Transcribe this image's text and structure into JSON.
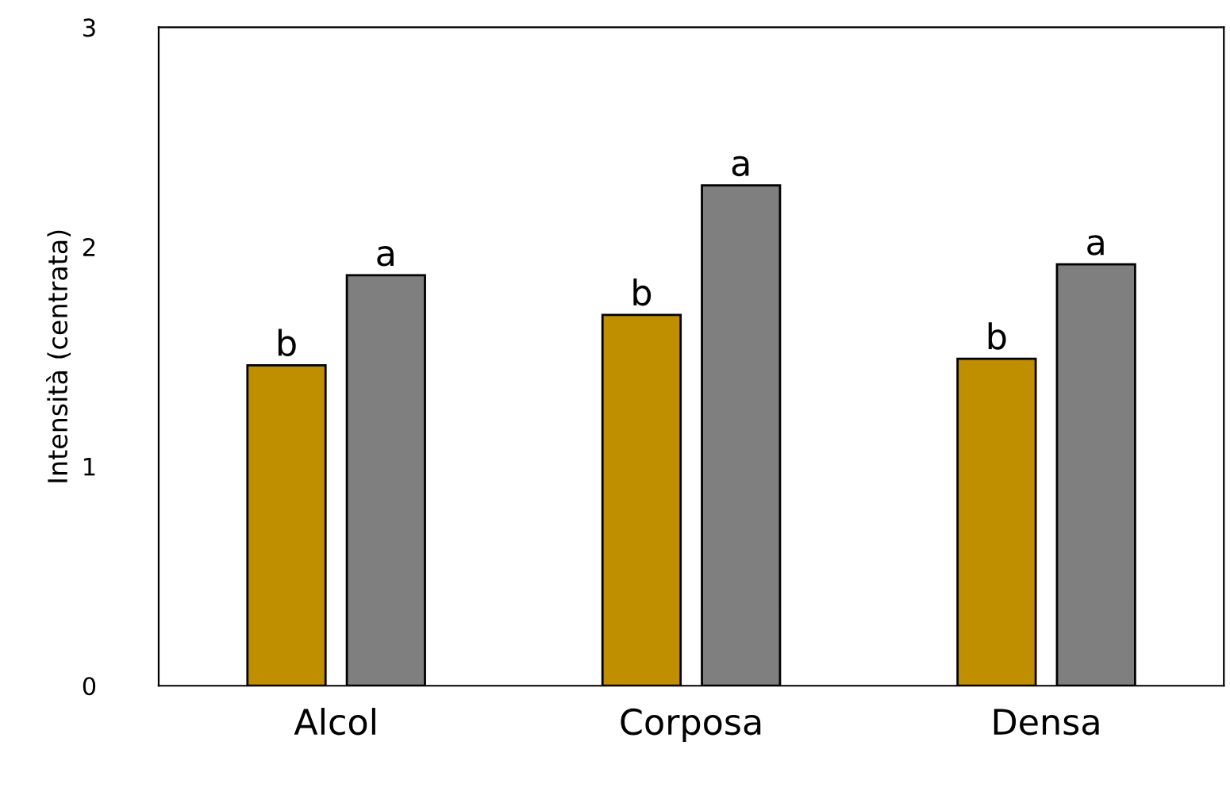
{
  "chart_data": {
    "type": "bar",
    "ylabel": "Intensità (centrata)",
    "categories": [
      "Alcol",
      "Corposa",
      "Densa"
    ],
    "series": [
      {
        "color": "#bf8f00",
        "values": [
          1.46,
          1.69,
          1.49
        ]
      },
      {
        "color": "#7f7f7f",
        "values": [
          1.87,
          2.28,
          1.92
        ]
      }
    ],
    "ylim": [
      0,
      3
    ],
    "yticks": [
      0,
      1,
      2,
      3
    ],
    "grid": false,
    "annotations": [
      "b",
      "a",
      "b",
      "a",
      "b",
      "a"
    ]
  }
}
